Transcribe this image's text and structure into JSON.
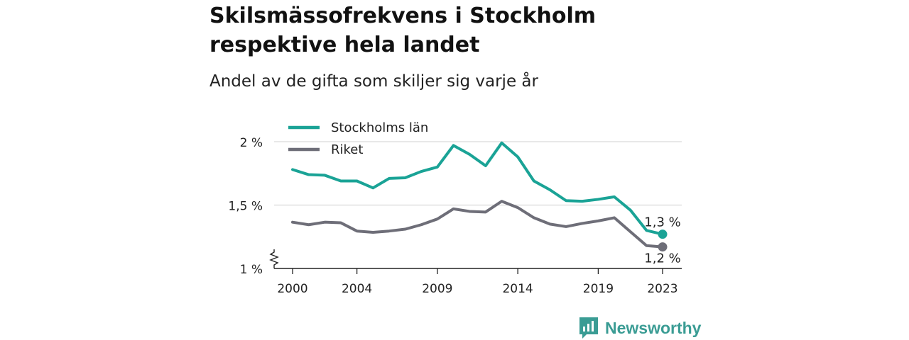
{
  "header": {
    "title": "Skilsmässofrekvens i Stockholm respektive hela landet",
    "subtitle": "Andel av de gifta som skiljer sig varje år"
  },
  "brand": {
    "name": "Newsworthy",
    "color": "#3a9c94",
    "icon": "bar-chart-icon"
  },
  "chart_data": {
    "type": "line",
    "title": "Skilsmässofrekvens i Stockholm respektive hela landet",
    "subtitle": "Andel av de gifta som skiljer sig varje år",
    "xlabel": "",
    "ylabel": "",
    "x": [
      2000,
      2001,
      2002,
      2003,
      2004,
      2005,
      2006,
      2007,
      2008,
      2009,
      2010,
      2011,
      2012,
      2013,
      2014,
      2015,
      2016,
      2017,
      2018,
      2019,
      2020,
      2021,
      2022,
      2023
    ],
    "x_ticks": [
      2000,
      2004,
      2009,
      2014,
      2019,
      2023
    ],
    "xlim": [
      2000,
      2023
    ],
    "ylim": [
      1,
      2
    ],
    "y_ticks": [
      {
        "value": 1,
        "label": "1 %"
      },
      {
        "value": 1.5,
        "label": "1,5 %"
      },
      {
        "value": 2,
        "label": "2 %"
      }
    ],
    "y_axis_break": true,
    "grid": "horizontal",
    "legend_position": "top-left",
    "series": [
      {
        "name": "Stockholms län",
        "color": "#1aa396",
        "values": [
          1.78,
          1.74,
          1.735,
          1.69,
          1.69,
          1.635,
          1.71,
          1.715,
          1.765,
          1.8,
          1.97,
          1.9,
          1.81,
          1.99,
          1.88,
          1.69,
          1.62,
          1.535,
          1.53,
          1.545,
          1.565,
          1.46,
          1.3,
          1.27
        ],
        "end_label": "1,3 %"
      },
      {
        "name": "Riket",
        "color": "#6e6e78",
        "values": [
          1.365,
          1.345,
          1.365,
          1.36,
          1.295,
          1.285,
          1.295,
          1.31,
          1.345,
          1.39,
          1.47,
          1.45,
          1.445,
          1.53,
          1.48,
          1.4,
          1.35,
          1.33,
          1.355,
          1.375,
          1.4,
          1.29,
          1.18,
          1.17
        ],
        "end_label": "1,2 %"
      }
    ]
  }
}
